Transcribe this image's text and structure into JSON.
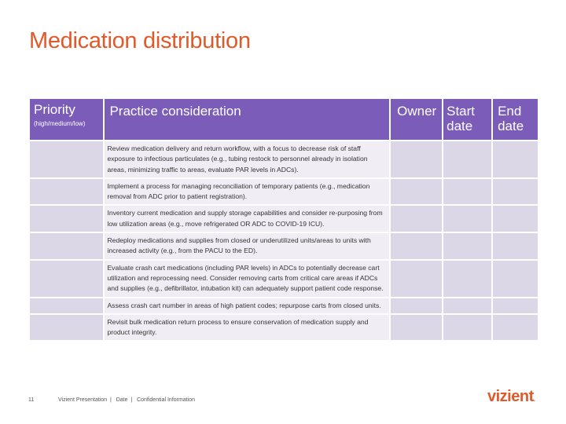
{
  "title": "Medication distribution",
  "headers": {
    "priority": "Priority",
    "priority_sub": "(high/medium/low)",
    "practice": "Practice consideration",
    "owner": "Owner",
    "start_line1": "Start",
    "start_line2": "date",
    "end_line1": "End",
    "end_line2": "date"
  },
  "rows": [
    "Review medication delivery and return workflow, with a focus to decrease risk of staff exposure to infectious particulates (e.g., tubing restock to personnel already in isolation areas, minimizing traffic to areas, evaluate PAR levels in ADCs).",
    "Implement a process for managing reconciliation of temporary patients (e.g., medication removal from ADC prior to patient registration).",
    "Inventory current medication and supply storage capabilities and consider re-purposing from low utilization areas (e.g., move refrigerated OR ADC to COVID-19 ICU).",
    "Redeploy medications and supplies from closed or underutilized units/areas to units with increased activity (e.g., from the PACU to the ED).",
    "Evaluate crash cart medications (including PAR levels) in ADCs to potentially decrease cart utilization and reprocessing need. Consider removing carts from critical care areas if ADCs and supplies (e.g., defibrillator, intubation kit) can adequately support patient code response.",
    "Assess crash cart number in areas of high patient codes; repurpose carts from closed units.",
    "Revisit bulk medication return process to ensure conservation of medication supply and product integrity."
  ],
  "footer": {
    "page_number": "11",
    "presentation": "Vizient Presentation",
    "date": "Date",
    "confidential": "Confidential Information",
    "logo": "vizient",
    "logo_mark": "."
  }
}
